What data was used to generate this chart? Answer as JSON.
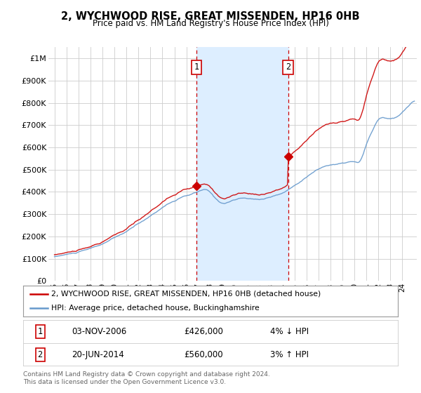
{
  "title": "2, WYCHWOOD RISE, GREAT MISSENDEN, HP16 0HB",
  "subtitle": "Price paid vs. HM Land Registry's House Price Index (HPI)",
  "legend_line1": "2, WYCHWOOD RISE, GREAT MISSENDEN, HP16 0HB (detached house)",
  "legend_line2": "HPI: Average price, detached house, Buckinghamshire",
  "footnote": "Contains HM Land Registry data © Crown copyright and database right 2024.\nThis data is licensed under the Open Government Licence v3.0.",
  "transaction1": {
    "label": "1",
    "date": "03-NOV-2006",
    "price": "£426,000",
    "hpi": "4% ↓ HPI"
  },
  "transaction2": {
    "label": "2",
    "date": "20-JUN-2014",
    "price": "£560,000",
    "hpi": "3% ↑ HPI"
  },
  "vline1_x": 2006.84,
  "vline2_x": 2014.47,
  "shade_xmin": 2006.84,
  "shade_xmax": 2014.47,
  "sale1_x": 2006.84,
  "sale1_y": 426000,
  "sale2_x": 2014.47,
  "sale2_y": 560000,
  "ylim": [
    0,
    1050000
  ],
  "xlim": [
    1994.5,
    2025.2
  ],
  "background_color": "#ffffff",
  "plot_bg_color": "#ffffff",
  "grid_color": "#cccccc",
  "shade_color": "#ddeeff",
  "vline_color": "#cc0000",
  "hpi_color": "#6699cc",
  "price_color": "#cc0000",
  "xticks": [
    1995,
    1996,
    1997,
    1998,
    1999,
    2000,
    2001,
    2002,
    2003,
    2004,
    2005,
    2006,
    2007,
    2008,
    2009,
    2010,
    2011,
    2012,
    2013,
    2014,
    2015,
    2016,
    2017,
    2018,
    2019,
    2020,
    2021,
    2022,
    2023,
    2024
  ],
  "ytick_vals": [
    0,
    100000,
    200000,
    300000,
    400000,
    500000,
    600000,
    700000,
    800000,
    900000,
    1000000
  ],
  "ytick_labels": [
    "£0",
    "£100K",
    "£200K",
    "£300K",
    "£400K",
    "£500K",
    "£600K",
    "£700K",
    "£800K",
    "£900K",
    "£1M"
  ]
}
